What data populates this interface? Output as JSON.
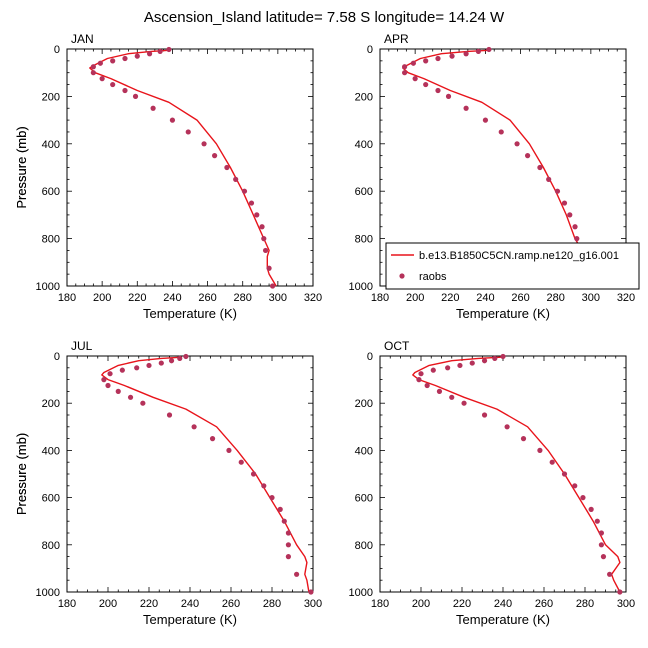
{
  "title": "Ascension_Island  latitude= 7.58 S longitude= 14.24 W",
  "colors": {
    "model": "#e8141b",
    "obs": "#b5325a",
    "axis": "#000000"
  },
  "legend": {
    "model_label": "b.e13.B1850C5CN.ramp.ne120_g16.001",
    "obs_label": "raobs"
  },
  "chart_data": [
    {
      "type": "line",
      "panel": "JAN",
      "xlabel": "Temperature (K)",
      "ylabel": "Pressure (mb)",
      "xlim": [
        180,
        320
      ],
      "ylim": [
        0,
        1000
      ],
      "y_reversed": true,
      "xticks": [
        180,
        200,
        220,
        240,
        260,
        280,
        300,
        320
      ],
      "yticks": [
        0,
        200,
        400,
        600,
        800,
        1000
      ],
      "series": [
        {
          "name": "b.e13.B1850C5CN.ramp.ne120_g16.001",
          "kind": "line",
          "x": [
            239,
            228,
            215,
            203,
            195,
            193,
            196,
            205,
            220,
            238,
            254,
            265,
            273,
            280,
            286,
            292,
            295,
            294,
            294,
            295,
            299
          ],
          "y": [
            5,
            10,
            20,
            40,
            70,
            80,
            100,
            125,
            175,
            225,
            300,
            400,
            500,
            600,
            700,
            800,
            850,
            875,
            925,
            950,
            1000
          ]
        },
        {
          "name": "raobs",
          "kind": "scatter",
          "x": [
            238,
            233,
            227,
            220,
            213,
            206,
            199,
            195,
            195,
            200,
            206,
            213,
            219,
            229,
            240,
            249,
            258,
            264,
            271,
            276,
            281,
            285,
            288,
            291,
            292,
            293,
            295,
            297
          ],
          "y": [
            2,
            10,
            20,
            30,
            40,
            50,
            60,
            75,
            100,
            125,
            150,
            175,
            200,
            250,
            300,
            350,
            400,
            450,
            500,
            550,
            600,
            650,
            700,
            750,
            800,
            850,
            925,
            1000
          ]
        }
      ]
    },
    {
      "type": "line",
      "panel": "APR",
      "xlabel": "Temperature (K)",
      "ylabel": "Pressure (mb)",
      "xlim": [
        180,
        320
      ],
      "ylim": [
        0,
        1000
      ],
      "y_reversed": true,
      "xticks": [
        180,
        200,
        220,
        240,
        260,
        280,
        300,
        320
      ],
      "yticks": [
        0,
        200,
        400,
        600,
        800,
        1000
      ],
      "series": [
        {
          "name": "b.e13.B1850C5CN.ramp.ne120_g16.001",
          "kind": "line",
          "x": [
            243,
            230,
            215,
            203,
            195,
            193,
            196,
            205,
            220,
            238,
            254,
            265,
            273,
            280,
            286,
            291,
            295,
            296,
            297,
            298,
            302
          ],
          "y": [
            5,
            10,
            20,
            40,
            70,
            80,
            100,
            125,
            175,
            225,
            300,
            400,
            500,
            600,
            700,
            800,
            850,
            875,
            925,
            950,
            1000
          ]
        },
        {
          "name": "raobs",
          "kind": "scatter",
          "x": [
            242,
            236,
            229,
            221,
            213,
            206,
            199,
            194,
            194,
            200,
            206,
            213,
            219,
            229,
            240,
            249,
            258,
            264,
            271,
            276,
            281,
            285,
            288,
            291,
            292,
            293,
            295,
            300
          ],
          "y": [
            2,
            10,
            20,
            30,
            40,
            50,
            60,
            75,
            100,
            125,
            150,
            175,
            200,
            250,
            300,
            350,
            400,
            450,
            500,
            550,
            600,
            650,
            700,
            750,
            800,
            850,
            925,
            1000
          ]
        }
      ]
    },
    {
      "type": "line",
      "panel": "JUL",
      "xlabel": "Temperature (K)",
      "ylabel": "Pressure (mb)",
      "xlim": [
        180,
        300
      ],
      "ylim": [
        0,
        1000
      ],
      "y_reversed": true,
      "xticks": [
        180,
        200,
        220,
        240,
        260,
        280,
        300
      ],
      "yticks": [
        0,
        200,
        400,
        600,
        800,
        1000
      ],
      "series": [
        {
          "name": "b.e13.B1850C5CN.ramp.ne120_g16.001",
          "kind": "line",
          "x": [
            236,
            226,
            215,
            205,
            198,
            197,
            200,
            208,
            222,
            238,
            253,
            263,
            272,
            279,
            286,
            292,
            296,
            297,
            296,
            297,
            298
          ],
          "y": [
            5,
            10,
            20,
            40,
            70,
            80,
            100,
            125,
            175,
            225,
            300,
            400,
            500,
            600,
            700,
            800,
            850,
            875,
            925,
            950,
            1000
          ]
        },
        {
          "name": "raobs",
          "kind": "scatter",
          "x": [
            238,
            235,
            231,
            226,
            220,
            214,
            207,
            201,
            198,
            200,
            205,
            211,
            217,
            230,
            242,
            251,
            259,
            265,
            271,
            276,
            280,
            284,
            286,
            288,
            288,
            288,
            292,
            299
          ],
          "y": [
            2,
            10,
            20,
            30,
            40,
            50,
            60,
            75,
            100,
            125,
            150,
            175,
            200,
            250,
            300,
            350,
            400,
            450,
            500,
            550,
            600,
            650,
            700,
            750,
            800,
            850,
            925,
            1000
          ]
        }
      ]
    },
    {
      "type": "line",
      "panel": "OCT",
      "xlabel": "Temperature (K)",
      "ylabel": "Pressure (mb)",
      "xlim": [
        180,
        300
      ],
      "ylim": [
        0,
        1000
      ],
      "y_reversed": true,
      "xticks": [
        180,
        200,
        220,
        240,
        260,
        280,
        300
      ],
      "yticks": [
        0,
        200,
        400,
        600,
        800,
        1000
      ],
      "series": [
        {
          "name": "b.e13.B1850C5CN.ramp.ne120_g16.001",
          "kind": "line",
          "x": [
            239,
            228,
            215,
            204,
            197,
            196,
            199,
            207,
            221,
            237,
            252,
            262,
            270,
            277,
            284,
            290,
            296,
            297,
            293,
            294,
            297
          ],
          "y": [
            5,
            10,
            20,
            40,
            70,
            80,
            100,
            125,
            175,
            225,
            300,
            400,
            500,
            600,
            700,
            800,
            850,
            875,
            925,
            950,
            1000
          ]
        },
        {
          "name": "raobs",
          "kind": "scatter",
          "x": [
            240,
            236,
            231,
            225,
            219,
            213,
            206,
            200,
            199,
            203,
            209,
            215,
            221,
            231,
            242,
            250,
            258,
            264,
            270,
            275,
            279,
            283,
            286,
            288,
            288,
            289,
            292,
            297
          ],
          "y": [
            2,
            10,
            20,
            30,
            40,
            50,
            60,
            75,
            100,
            125,
            150,
            175,
            200,
            250,
            300,
            350,
            400,
            450,
            500,
            550,
            600,
            650,
            700,
            750,
            800,
            850,
            925,
            1000
          ]
        }
      ]
    }
  ]
}
